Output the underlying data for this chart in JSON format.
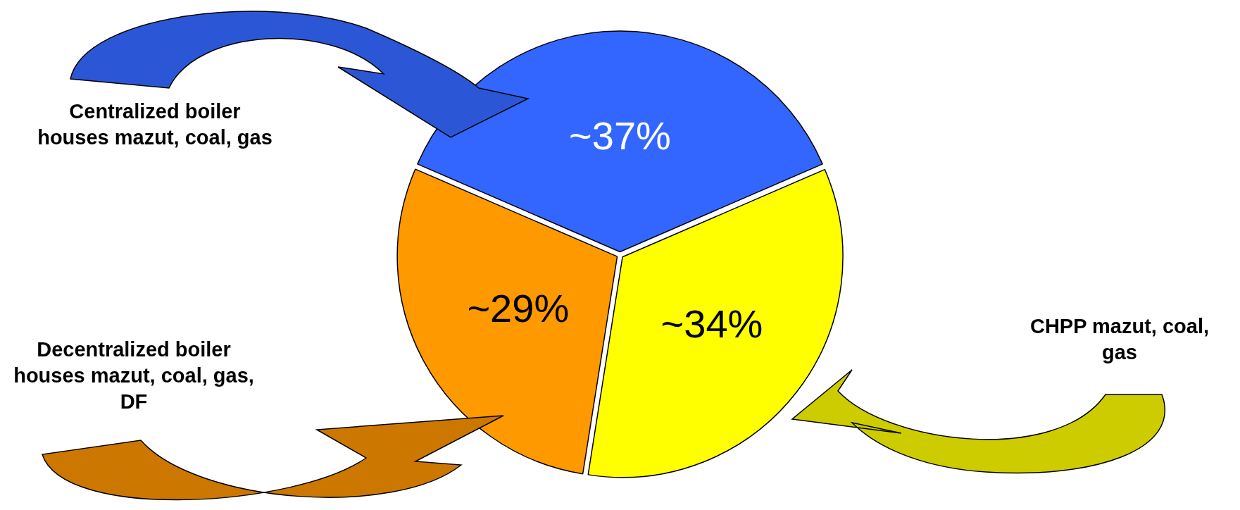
{
  "chart_data": {
    "type": "pie",
    "categories": [
      "Centralized boiler houses mazut, coal, gas",
      "CHPP mazut, coal, gas",
      "Decentralized boiler houses mazut, coal, gas, DF"
    ],
    "values": [
      37,
      34,
      29
    ],
    "colors": [
      "#3366ff",
      "#ffff00",
      "#ff9900"
    ],
    "value_labels": [
      "~37%",
      "~34%",
      "~29%"
    ],
    "legend": false
  }
}
